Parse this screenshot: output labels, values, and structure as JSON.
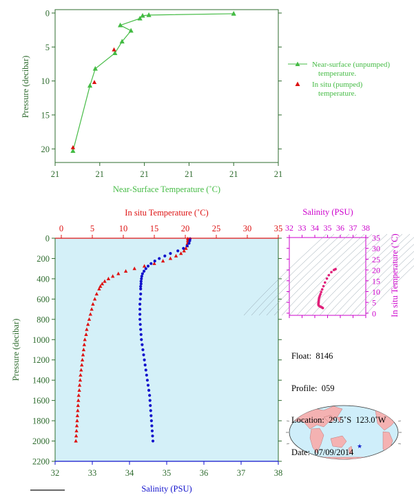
{
  "colors": {
    "near_surface": "#44bb44",
    "in_situ_temp": "#dd1111",
    "salinity": "#1111cc",
    "ts_curve": "#e0207a",
    "magenta_axis": "#cc00cc",
    "axis_green": "#2e6b2e",
    "plot_bg": "#d4f0f8"
  },
  "chart_data": [
    {
      "type": "line",
      "xlabel": "Near-Surface Temperature (˚C)",
      "ylabel": "Pressure (decibar)",
      "x_ticks": [
        "21",
        "21",
        "21",
        "21",
        "21",
        "21"
      ],
      "y_ticks": [
        "0",
        "5",
        "10",
        "15",
        "20"
      ],
      "ylim": [
        22,
        -0.5
      ],
      "y_inverted": true,
      "legend_position": "right",
      "series": [
        {
          "name": "Near-surface (unpumped) temperature.",
          "marker": "triangle",
          "x": [
            20.6,
            20.695,
            20.725,
            20.835,
            20.875,
            20.925,
            20.865,
            20.975,
            20.99,
            21.025,
            21.5
          ],
          "y": [
            20.3,
            10.7,
            8.2,
            5.9,
            4.2,
            2.6,
            1.8,
            0.8,
            0.4,
            0.3,
            0.1
          ]
        },
        {
          "name": "In situ (pumped) temperature.",
          "marker": "triangle",
          "x": [
            20.6,
            20.72,
            20.83
          ],
          "y": [
            19.8,
            10.2,
            5.4
          ]
        }
      ]
    },
    {
      "type": "line",
      "title_top": "In situ Temperature (˚C)",
      "xlabel": "Salinity (PSU)",
      "ylabel": "Pressure (decibar)",
      "temp_ticks": [
        "0",
        "5",
        "10",
        "15",
        "20",
        "25",
        "30",
        "35"
      ],
      "sal_ticks": [
        "32",
        "33",
        "34",
        "35",
        "36",
        "37",
        "38"
      ],
      "p_ticks": [
        "0",
        "200",
        "400",
        "600",
        "800",
        "1000",
        "1200",
        "1400",
        "1600",
        "1800",
        "2000",
        "2200"
      ],
      "temp_lim": [
        -1,
        35
      ],
      "sal_lim": [
        32,
        38
      ],
      "p_lim": [
        0,
        2200
      ],
      "temperature_profile": {
        "name": "In situ Temperature",
        "marker": "triangle",
        "pressure": [
          5,
          25,
          50,
          75,
          100,
          125,
          150,
          175,
          200,
          225,
          250,
          275,
          300,
          325,
          350,
          375,
          400,
          425,
          450,
          475,
          500,
          550,
          600,
          650,
          700,
          750,
          800,
          850,
          900,
          950,
          1000,
          1050,
          1100,
          1150,
          1200,
          1250,
          1300,
          1350,
          1400,
          1450,
          1500,
          1550,
          1600,
          1650,
          1700,
          1750,
          1800,
          1850,
          1900,
          1950,
          2000
        ],
        "temp": [
          20.4,
          20.4,
          20.35,
          20.3,
          20.1,
          19.8,
          19.3,
          18.5,
          17.6,
          16.4,
          15.0,
          13.4,
          11.8,
          10.4,
          9.2,
          8.3,
          7.6,
          7.0,
          6.6,
          6.3,
          6.1,
          5.7,
          5.4,
          5.1,
          4.9,
          4.7,
          4.5,
          4.3,
          4.1,
          4.0,
          3.8,
          3.7,
          3.6,
          3.5,
          3.4,
          3.3,
          3.2,
          3.1,
          3.05,
          2.95,
          2.9,
          2.8,
          2.75,
          2.7,
          2.65,
          2.6,
          2.55,
          2.5,
          2.45,
          2.4,
          2.35
        ]
      },
      "salinity_profile": {
        "name": "Salinity",
        "marker": "circle",
        "pressure": [
          5,
          25,
          50,
          75,
          100,
          125,
          150,
          175,
          200,
          225,
          250,
          275,
          300,
          325,
          350,
          375,
          400,
          425,
          450,
          475,
          500,
          550,
          600,
          650,
          700,
          750,
          800,
          850,
          900,
          950,
          1000,
          1050,
          1100,
          1150,
          1200,
          1250,
          1300,
          1350,
          1400,
          1450,
          1500,
          1550,
          1600,
          1650,
          1700,
          1750,
          1800,
          1850,
          1900,
          1950,
          2000
        ],
        "salinity": [
          35.63,
          35.62,
          35.6,
          35.55,
          35.45,
          35.3,
          35.1,
          34.95,
          34.8,
          34.68,
          34.58,
          34.5,
          34.44,
          34.39,
          34.35,
          34.33,
          34.32,
          34.31,
          34.31,
          34.3,
          34.3,
          34.3,
          34.29,
          34.28,
          34.28,
          34.28,
          34.28,
          34.29,
          34.3,
          34.31,
          34.32,
          34.34,
          34.36,
          34.38,
          34.4,
          34.42,
          34.44,
          34.46,
          34.48,
          34.5,
          34.52,
          34.54,
          34.55,
          34.56,
          34.57,
          34.58,
          34.59,
          34.6,
          34.61,
          34.62,
          34.63
        ]
      }
    },
    {
      "type": "scatter",
      "title_top": "Salinity (PSU)",
      "ylabel_right": "In situ Temperature (˚C)",
      "sal_ticks": [
        "32",
        "33",
        "34",
        "35",
        "36",
        "37",
        "38"
      ],
      "temp_ticks": [
        "0",
        "5",
        "10",
        "15",
        "20",
        "25",
        "30",
        "35"
      ],
      "sal_lim": [
        32,
        38
      ],
      "temp_lim": [
        -1,
        35
      ],
      "ts": {
        "salinity": [
          35.63,
          35.6,
          35.5,
          35.3,
          35.1,
          34.95,
          34.8,
          34.68,
          34.58,
          34.5,
          34.44,
          34.39,
          34.35,
          34.33,
          34.32,
          34.31,
          34.3,
          34.3,
          34.29,
          34.28,
          34.28,
          34.29,
          34.32,
          34.38,
          34.45,
          34.52,
          34.58,
          34.63
        ],
        "temp": [
          20.4,
          20.3,
          20.0,
          19.0,
          17.6,
          16.0,
          14.2,
          12.5,
          11.0,
          9.8,
          8.8,
          8.0,
          7.3,
          6.8,
          6.3,
          5.8,
          5.4,
          5.0,
          4.7,
          4.4,
          4.1,
          3.8,
          3.5,
          3.2,
          3.0,
          2.8,
          2.6,
          2.35
        ]
      }
    }
  ],
  "info": {
    "float_label": "Float:",
    "float_value": "8146",
    "profile_label": "Profile:",
    "profile_value": "059",
    "location_label": "Location:",
    "location_value": "29.5˚S  123.0˚W",
    "date_label": "Date:",
    "date_value": "07/09/2014"
  },
  "map": {
    "marker_icon": "blue-star-icon",
    "marker_lat": -29.5,
    "marker_lon": -123.0
  }
}
